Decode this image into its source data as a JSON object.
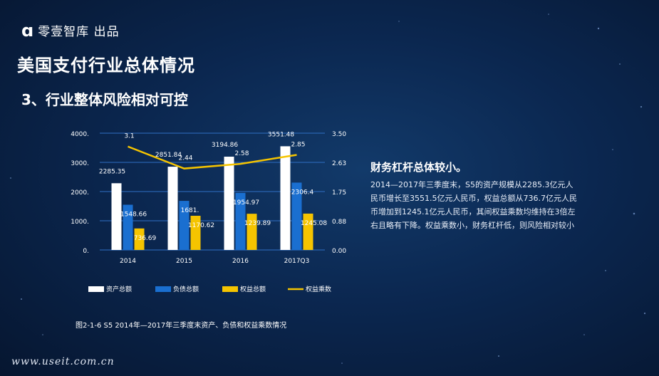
{
  "brand": {
    "mark": "ɑ",
    "text": "零壹智库 出品"
  },
  "title": "美国支付行业总体情况",
  "subtitle": "3、行业整体风险相对可控",
  "side": {
    "heading": "财务杠杆总体较小。",
    "body": "2014—2017年三季度末，S5的资产规模从2285.3亿元人民币增长至3551.5亿元人民币，权益总额从736.7亿元人民币增加到1245.1亿元人民币，其间权益乘数均维持在3倍左右且略有下降。权益乘数小，财务杠杆低，则风险相对较小"
  },
  "caption": "图2-1-6  S5 2014年—2017年三季度末资产、负债和权益乘数情况",
  "footer": "www.useit.com.cn",
  "colors": {
    "assets": "#ffffff",
    "liabilities": "#1a6fd0",
    "equity": "#f5c400",
    "multiplier": "#f5c400",
    "grid": "#2f6fc4",
    "axis_text": "#ffffff"
  },
  "chart_data": {
    "type": "bar",
    "categories": [
      "2014",
      "2015",
      "2016",
      "2017Q3"
    ],
    "series": [
      {
        "name": "资产总额",
        "kind": "bar",
        "axis": "left",
        "values": [
          2285.35,
          2851.84,
          3194.86,
          3551.48
        ],
        "labels": [
          "2285.35",
          "2851.84",
          "3194.86",
          "3551.48"
        ]
      },
      {
        "name": "负债总额",
        "kind": "bar",
        "axis": "left",
        "values": [
          1548.66,
          1681.22,
          1954.97,
          2306.4
        ],
        "labels": [
          "1548.66",
          "1681.",
          "1954.97",
          "2306.4"
        ]
      },
      {
        "name": "权益总额",
        "kind": "bar",
        "axis": "left",
        "values": [
          736.69,
          1170.62,
          1239.89,
          1245.08
        ],
        "labels": [
          "736.69",
          "1170.62",
          "1239.89",
          "1245.08"
        ]
      },
      {
        "name": "权益乘数",
        "kind": "line",
        "axis": "right",
        "values": [
          3.1,
          2.44,
          2.58,
          2.85
        ],
        "labels": [
          "3.1",
          "2.44",
          "2.58",
          "2.85"
        ]
      }
    ],
    "left_axis": {
      "min": 0,
      "max": 4000,
      "ticks": [
        "0.",
        "1000.",
        "2000.",
        "3000.",
        "4000."
      ]
    },
    "right_axis": {
      "min": 0,
      "max": 3.5,
      "ticks": [
        "0.00",
        "0.88",
        "1.75",
        "2.63",
        "3.50"
      ]
    },
    "grid": true,
    "legend_position": "bottom"
  }
}
